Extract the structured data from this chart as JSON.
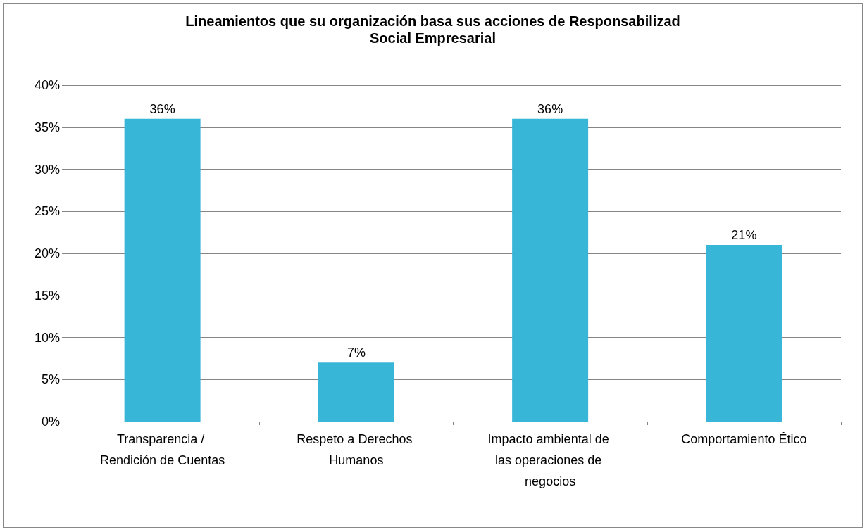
{
  "chart_data": {
    "type": "bar",
    "title": "Lineamientos que su organización basa sus acciones de Responsabilizad\nSocial Empresarial",
    "categories": [
      "Transparencia / Rendición de Cuentas",
      "Respeto a Derechos Humanos",
      "Impacto ambiental de las operaciones de negocios",
      "Comportamiento Ético"
    ],
    "values": [
      36,
      7,
      36,
      21
    ],
    "value_labels": [
      "36%",
      "7%",
      "36%",
      "21%"
    ],
    "color": "#38b6d8",
    "ylim": [
      0,
      40
    ],
    "yticks": [
      {
        "value": 0,
        "label": "0%"
      },
      {
        "value": 5,
        "label": "5%"
      },
      {
        "value": 10,
        "label": "10%"
      },
      {
        "value": 15,
        "label": "15%"
      },
      {
        "value": 20,
        "label": "20%"
      },
      {
        "value": 25,
        "label": "25%"
      },
      {
        "value": 30,
        "label": "30%"
      },
      {
        "value": 35,
        "label": "35%"
      },
      {
        "value": 40,
        "label": "40%"
      }
    ],
    "grid": "y"
  }
}
